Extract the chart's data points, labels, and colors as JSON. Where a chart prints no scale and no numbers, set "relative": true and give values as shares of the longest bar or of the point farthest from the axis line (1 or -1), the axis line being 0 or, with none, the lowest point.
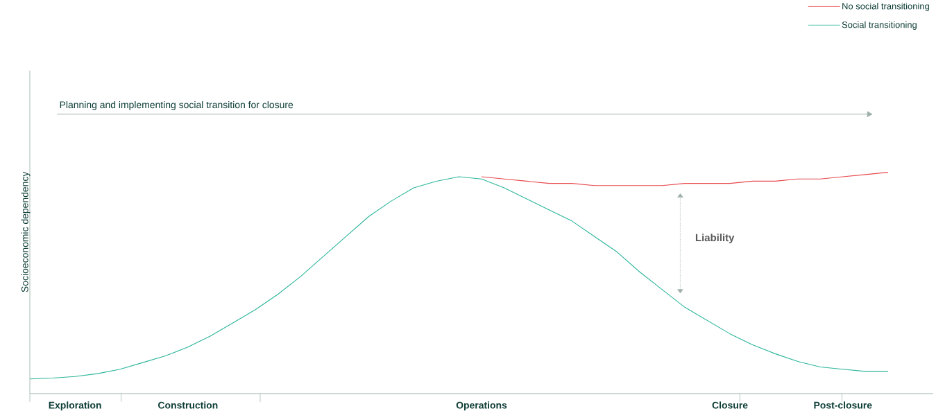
{
  "chart_data": {
    "type": "line",
    "relative": true,
    "ylabel": "Socioeconomic dependency",
    "legend": "top right",
    "grid": false,
    "marker": "none",
    "line_style": "solid",
    "categories": [
      null,
      null,
      "Exploration",
      null,
      null,
      null,
      null,
      "Construction",
      null,
      null,
      null,
      null,
      null,
      null,
      null,
      null,
      null,
      null,
      null,
      null,
      "Operations",
      null,
      null,
      null,
      null,
      null,
      null,
      null,
      null,
      null,
      null,
      "Closure",
      null,
      null,
      null,
      null,
      "Post-closure",
      null,
      null,
      null,
      null
    ],
    "series": [
      {
        "name": "No social transitioning",
        "color": "#e8474c",
        "values": [
          null,
          null,
          null,
          null,
          null,
          null,
          null,
          null,
          null,
          null,
          null,
          null,
          null,
          null,
          null,
          null,
          null,
          null,
          null,
          null,
          0.98,
          0.97,
          0.96,
          0.95,
          0.95,
          0.94,
          0.94,
          0.94,
          0.94,
          0.95,
          0.95,
          0.95,
          0.96,
          0.96,
          0.97,
          0.97,
          0.98,
          0.99,
          1.0,
          null,
          null
        ]
      },
      {
        "name": "Social transitioning",
        "color": "#2bb59a",
        "values": [
          0.066,
          0.07,
          0.077,
          0.09,
          0.11,
          0.14,
          0.17,
          0.21,
          0.26,
          0.32,
          0.38,
          0.45,
          0.53,
          0.62,
          0.71,
          0.8,
          0.87,
          0.93,
          0.96,
          0.98,
          0.97,
          0.93,
          0.88,
          0.83,
          0.78,
          0.71,
          0.64,
          0.55,
          0.47,
          0.39,
          0.33,
          0.27,
          0.22,
          0.18,
          0.145,
          0.12,
          0.11,
          0.1,
          0.1,
          null,
          null
        ]
      }
    ],
    "annotations": [
      "Planning and implementing social transition for closure",
      "Liability"
    ]
  }
}
